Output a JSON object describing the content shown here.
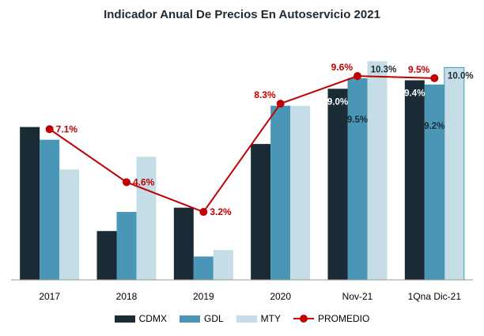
{
  "chart_data": {
    "type": "bar",
    "title": "Indicador Anual De Precios En Autoservicio 2021",
    "categories": [
      "2017",
      "2018",
      "2019",
      "2020",
      "Nov-21",
      "1Qna Dic-21"
    ],
    "series": [
      {
        "name": "CDMX",
        "type": "bar",
        "color": "#1a2b36",
        "values": [
          7.2,
          2.3,
          3.4,
          6.4,
          9.0,
          9.4
        ]
      },
      {
        "name": "GDL",
        "type": "bar",
        "color": "#4a96b6",
        "values": [
          6.6,
          3.2,
          1.1,
          8.2,
          9.5,
          9.2
        ]
      },
      {
        "name": "MTY",
        "type": "bar",
        "color": "#c5dde6",
        "values": [
          5.2,
          5.8,
          1.4,
          8.2,
          10.3,
          10.0
        ]
      },
      {
        "name": "PROMEDIO",
        "type": "line",
        "color": "#c00000",
        "values": [
          7.1,
          4.6,
          3.2,
          8.3,
          9.6,
          9.5
        ]
      }
    ],
    "data_labels": {
      "promedio": [
        "7.1%",
        "4.6%",
        "3.2%",
        "8.3%",
        "9.6%",
        "9.5%"
      ],
      "cdmx": [
        "",
        "",
        "",
        "",
        "9.0%",
        "9.4%"
      ],
      "gdl": [
        "",
        "",
        "",
        "",
        "9.5%",
        "9.2%"
      ],
      "mty": [
        "",
        "",
        "",
        "",
        "10.3%",
        "10.0%"
      ]
    },
    "ylim": [
      0,
      10.5
    ],
    "grid": false,
    "legend": "bottom"
  }
}
